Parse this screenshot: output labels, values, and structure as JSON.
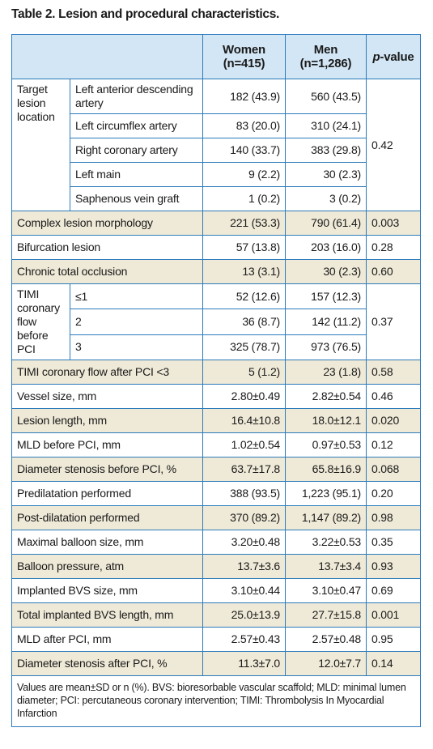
{
  "title": "Table 2. Lesion and procedural characteristics.",
  "header": {
    "columns": [
      "Women (n=415)",
      "Men (n=1,286)",
      "p-value"
    ]
  },
  "rows": [
    {
      "group": "Target lesion location",
      "p": "0.42",
      "items": [
        {
          "label": "Left anterior descending artery",
          "women": "182 (43.9)",
          "men": "560 (43.5)"
        },
        {
          "label": "Left circumflex artery",
          "women": "83 (20.0)",
          "men": "310 (24.1)"
        },
        {
          "label": "Right coronary artery",
          "women": "140 (33.7)",
          "men": "383 (29.8)"
        },
        {
          "label": "Left main",
          "women": "9 (2.2)",
          "men": "30 (2.3)"
        },
        {
          "label": "Saphenous vein graft",
          "women": "1 (0.2)",
          "men": "3 (0.2)"
        }
      ]
    },
    {
      "label": "Complex lesion morphology",
      "women": "221 (53.3)",
      "men": "790 (61.4)",
      "p": "0.003"
    },
    {
      "label": "Bifurcation lesion",
      "women": "57 (13.8)",
      "men": "203 (16.0)",
      "p": "0.28"
    },
    {
      "label": "Chronic total occlusion",
      "women": "13 (3.1)",
      "men": "30 (2.3)",
      "p": "0.60"
    },
    {
      "group": "TIMI coronary flow before PCI",
      "p": "0.37",
      "items": [
        {
          "label": "≤1",
          "women": "52 (12.6)",
          "men": "157 (12.3)"
        },
        {
          "label": "2",
          "women": "36 (8.7)",
          "men": "142 (11.2)"
        },
        {
          "label": "3",
          "women": "325 (78.7)",
          "men": "973 (76.5)"
        }
      ]
    },
    {
      "label": "TIMI coronary flow after PCI <3",
      "women": "5 (1.2)",
      "men": "23 (1.8)",
      "p": "0.58"
    },
    {
      "label": "Vessel size, mm",
      "women": "2.80±0.49",
      "men": "2.82±0.54",
      "p": "0.46"
    },
    {
      "label": "Lesion length, mm",
      "women": "16.4±10.8",
      "men": "18.0±12.1",
      "p": "0.020"
    },
    {
      "label": "MLD before PCI, mm",
      "women": "1.02±0.54",
      "men": "0.97±0.53",
      "p": "0.12"
    },
    {
      "label": "Diameter stenosis before PCI, %",
      "women": "63.7±17.8",
      "men": "65.8±16.9",
      "p": "0.068"
    },
    {
      "label": "Predilatation performed",
      "women": "388 (93.5)",
      "men": "1,223 (95.1)",
      "p": "0.20"
    },
    {
      "label": "Post-dilatation performed",
      "women": "370 (89.2)",
      "men": "1,147 (89.2)",
      "p": "0.98"
    },
    {
      "label": "Maximal balloon size, mm",
      "women": "3.20±0.48",
      "men": "3.22±0.53",
      "p": "0.35"
    },
    {
      "label": "Balloon pressure, atm",
      "women": "13.7±3.6",
      "men": "13.7±3.4",
      "p": "0.93"
    },
    {
      "label": "Implanted BVS size, mm",
      "women": "3.10±0.44",
      "men": "3.10±0.47",
      "p": "0.69"
    },
    {
      "label": "Total implanted BVS length, mm",
      "women": "25.0±13.9",
      "men": "27.7±15.8",
      "p": "0.001"
    },
    {
      "label": "MLD after PCI, mm",
      "women": "2.57±0.43",
      "men": "2.57±0.48",
      "p": "0.95"
    },
    {
      "label": "Diameter stenosis after PCI, %",
      "women": "11.3±7.0",
      "men": "12.0±7.7",
      "p": "0.14"
    }
  ],
  "footnote": "Values are mean±SD or n (%). BVS: bioresorbable vascular scaffold; MLD: minimal lumen diameter; PCI: percutaneous coronary intervention; TIMI: Thrombolysis In Myocardial Infarction"
}
